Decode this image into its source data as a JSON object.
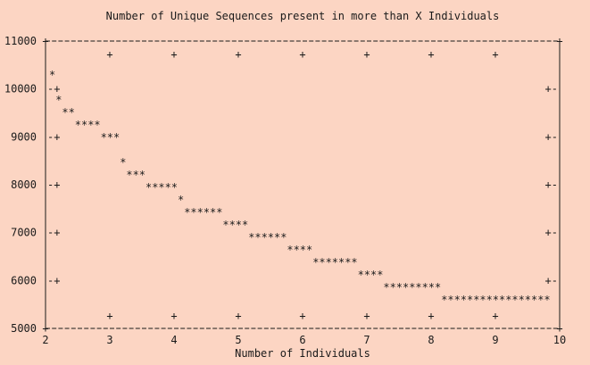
{
  "chart_data": {
    "type": "line",
    "title": "Number of Unique Sequences present in more than X Individuals",
    "xlabel": "Number of Individuals",
    "ylabel": "",
    "xlim": [
      2,
      10
    ],
    "ylim": [
      5000,
      11000
    ],
    "xticks": [
      "2",
      "3",
      "4",
      "5",
      "6",
      "7",
      "8",
      "9",
      "10"
    ],
    "yticks": [
      "5000",
      "6000",
      "7000",
      "8000",
      "9000",
      "10000",
      "11000"
    ],
    "grid": false,
    "legend": "none",
    "marker": "*",
    "frame_char": "-",
    "tick_char": "+",
    "x": [
      2,
      3,
      4,
      5,
      6,
      7,
      8,
      9
    ],
    "y": [
      10300,
      9000,
      7800,
      7200,
      6700,
      6200,
      5750,
      5500
    ],
    "color": "#1a1a1a",
    "background": "#fcd5c3"
  }
}
